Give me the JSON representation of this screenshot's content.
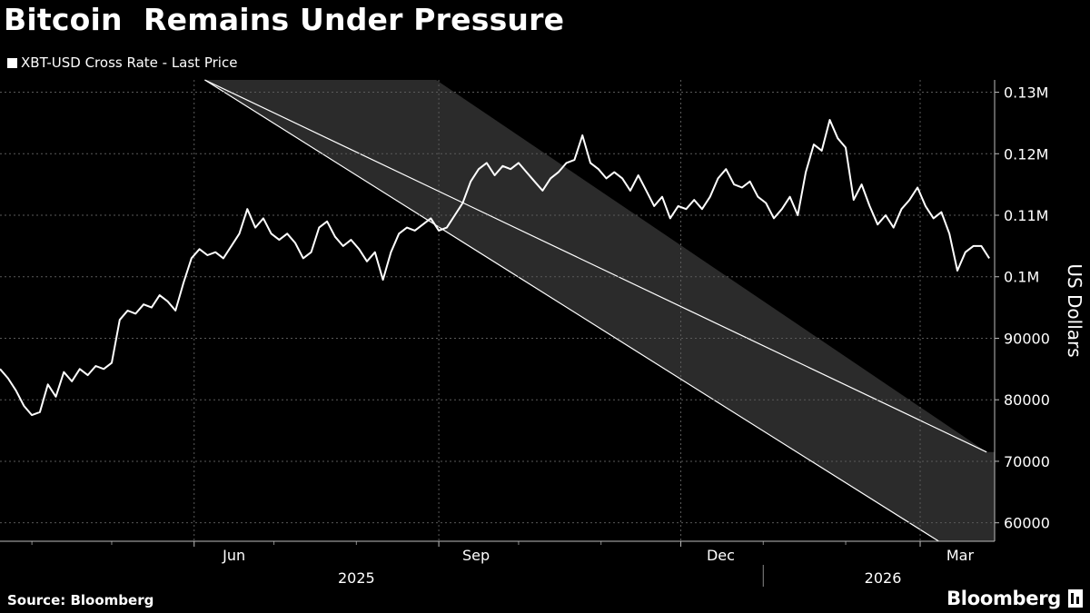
{
  "header": {
    "title": "Bitcoin  Remains Under Pressure"
  },
  "footer": {
    "source": "Source: Bloomberg",
    "brand": "Bloomberg"
  },
  "chart_data": {
    "type": "line",
    "title": "Bitcoin  Remains Under Pressure",
    "ylabel": "US Dollars",
    "ylim": [
      57000,
      132000
    ],
    "xlim": [
      "2025-03-20",
      "2026-03-29"
    ],
    "grid": true,
    "legend_position": "top-left",
    "colors": {
      "background": "#000000",
      "line": "#ffffff",
      "channel_fill": "#2b2b2b",
      "channel_edge": "#ffffff",
      "grid": "#5a5a5a"
    },
    "y_ticks": [
      {
        "value": 60000,
        "label": "60000"
      },
      {
        "value": 70000,
        "label": "70000"
      },
      {
        "value": 80000,
        "label": "80000"
      },
      {
        "value": 90000,
        "label": "90000"
      },
      {
        "value": 100000,
        "label": "0.1M"
      },
      {
        "value": 110000,
        "label": "0.11M"
      },
      {
        "value": 120000,
        "label": "0.12M"
      },
      {
        "value": 130000,
        "label": "0.13M"
      }
    ],
    "x_month_labels": [
      {
        "date": "2025-06-16",
        "label": "Jun"
      },
      {
        "date": "2025-09-15",
        "label": "Sep"
      },
      {
        "date": "2025-12-16",
        "label": "Dec"
      },
      {
        "date": "2026-03-16",
        "label": "Mar"
      }
    ],
    "x_year_labels": [
      {
        "date": "2025-08-01",
        "label": "2025"
      },
      {
        "date": "2026-02-15",
        "label": "2026"
      }
    ],
    "year_divider": "2026-01-01",
    "x_gridlines": [
      "2025-06-01",
      "2025-09-01",
      "2025-12-01",
      "2026-03-01"
    ],
    "x_minor_ticks": [
      "2025-04-01",
      "2025-05-01",
      "2025-07-01",
      "2025-08-01",
      "2025-10-01",
      "2025-11-01",
      "2026-01-01",
      "2026-02-01"
    ],
    "trend_channel": {
      "upper": [
        [
          "2025-06-05",
          132000
        ],
        [
          "2026-03-26",
          71500
        ]
      ],
      "lower": [
        [
          "2025-06-05",
          132000
        ],
        [
          "2026-03-08",
          57000
        ]
      ],
      "top_edge": [
        [
          "2025-06-05",
          132000
        ],
        [
          "2025-08-31",
          132000
        ]
      ]
    },
    "series": [
      {
        "name": "XBT-USD Cross Rate - Last Price",
        "points": [
          [
            "2025-03-20",
            85000
          ],
          [
            "2025-03-23",
            83500
          ],
          [
            "2025-03-26",
            81500
          ],
          [
            "2025-03-29",
            79000
          ],
          [
            "2025-04-01",
            77500
          ],
          [
            "2025-04-04",
            78000
          ],
          [
            "2025-04-07",
            82500
          ],
          [
            "2025-04-10",
            80500
          ],
          [
            "2025-04-13",
            84500
          ],
          [
            "2025-04-16",
            83000
          ],
          [
            "2025-04-19",
            85000
          ],
          [
            "2025-04-22",
            84000
          ],
          [
            "2025-04-25",
            85500
          ],
          [
            "2025-04-28",
            85000
          ],
          [
            "2025-05-01",
            86000
          ],
          [
            "2025-05-04",
            93000
          ],
          [
            "2025-05-07",
            94500
          ],
          [
            "2025-05-10",
            94000
          ],
          [
            "2025-05-13",
            95500
          ],
          [
            "2025-05-16",
            95000
          ],
          [
            "2025-05-19",
            97000
          ],
          [
            "2025-05-22",
            96000
          ],
          [
            "2025-05-25",
            94500
          ],
          [
            "2025-05-28",
            99000
          ],
          [
            "2025-05-31",
            103000
          ],
          [
            "2025-06-03",
            104500
          ],
          [
            "2025-06-06",
            103500
          ],
          [
            "2025-06-09",
            104000
          ],
          [
            "2025-06-12",
            103000
          ],
          [
            "2025-06-15",
            105000
          ],
          [
            "2025-06-18",
            107000
          ],
          [
            "2025-06-21",
            111000
          ],
          [
            "2025-06-24",
            108000
          ],
          [
            "2025-06-27",
            109500
          ],
          [
            "2025-06-30",
            107000
          ],
          [
            "2025-07-03",
            106000
          ],
          [
            "2025-07-06",
            107000
          ],
          [
            "2025-07-09",
            105500
          ],
          [
            "2025-07-12",
            103000
          ],
          [
            "2025-07-15",
            104000
          ],
          [
            "2025-07-18",
            108000
          ],
          [
            "2025-07-21",
            109000
          ],
          [
            "2025-07-24",
            106500
          ],
          [
            "2025-07-27",
            105000
          ],
          [
            "2025-07-30",
            106000
          ],
          [
            "2025-08-02",
            104500
          ],
          [
            "2025-08-05",
            102500
          ],
          [
            "2025-08-08",
            104000
          ],
          [
            "2025-08-11",
            99500
          ],
          [
            "2025-08-14",
            104000
          ],
          [
            "2025-08-17",
            107000
          ],
          [
            "2025-08-20",
            108000
          ],
          [
            "2025-08-23",
            107500
          ],
          [
            "2025-08-26",
            108500
          ],
          [
            "2025-08-29",
            109500
          ],
          [
            "2025-09-01",
            107500
          ],
          [
            "2025-09-04",
            108000
          ],
          [
            "2025-09-07",
            110000
          ],
          [
            "2025-09-10",
            112000
          ],
          [
            "2025-09-13",
            115500
          ],
          [
            "2025-09-16",
            117500
          ],
          [
            "2025-09-19",
            118500
          ],
          [
            "2025-09-22",
            116500
          ],
          [
            "2025-09-25",
            118000
          ],
          [
            "2025-09-28",
            117500
          ],
          [
            "2025-10-01",
            118500
          ],
          [
            "2025-10-04",
            117000
          ],
          [
            "2025-10-07",
            115500
          ],
          [
            "2025-10-10",
            114000
          ],
          [
            "2025-10-13",
            116000
          ],
          [
            "2025-10-16",
            117000
          ],
          [
            "2025-10-19",
            118500
          ],
          [
            "2025-10-22",
            119000
          ],
          [
            "2025-10-25",
            123000
          ],
          [
            "2025-10-28",
            118500
          ],
          [
            "2025-10-31",
            117500
          ],
          [
            "2025-11-03",
            116000
          ],
          [
            "2025-11-06",
            117000
          ],
          [
            "2025-11-09",
            116000
          ],
          [
            "2025-11-12",
            114000
          ],
          [
            "2025-11-15",
            116500
          ],
          [
            "2025-11-18",
            114000
          ],
          [
            "2025-11-21",
            111500
          ],
          [
            "2025-11-24",
            113000
          ],
          [
            "2025-11-27",
            109500
          ],
          [
            "2025-11-30",
            111500
          ],
          [
            "2025-12-03",
            111000
          ],
          [
            "2025-12-06",
            112500
          ],
          [
            "2025-12-09",
            111000
          ],
          [
            "2025-12-12",
            113000
          ],
          [
            "2025-12-15",
            116000
          ],
          [
            "2025-12-18",
            117500
          ],
          [
            "2025-12-21",
            115000
          ],
          [
            "2025-12-24",
            114500
          ],
          [
            "2025-12-27",
            115500
          ],
          [
            "2025-12-30",
            113000
          ],
          [
            "2026-01-02",
            112000
          ],
          [
            "2026-01-05",
            109500
          ],
          [
            "2026-01-08",
            111000
          ],
          [
            "2026-01-11",
            113000
          ],
          [
            "2026-01-14",
            110000
          ],
          [
            "2026-01-17",
            117000
          ],
          [
            "2026-01-20",
            121500
          ],
          [
            "2026-01-23",
            120500
          ],
          [
            "2026-01-26",
            125500
          ],
          [
            "2026-01-29",
            122500
          ],
          [
            "2026-02-01",
            121000
          ],
          [
            "2026-02-04",
            112500
          ],
          [
            "2026-02-07",
            115000
          ],
          [
            "2026-02-10",
            111500
          ],
          [
            "2026-02-13",
            108500
          ],
          [
            "2026-02-16",
            110000
          ],
          [
            "2026-02-19",
            108000
          ],
          [
            "2026-02-22",
            111000
          ],
          [
            "2026-02-25",
            112500
          ],
          [
            "2026-02-28",
            114500
          ],
          [
            "2026-03-03",
            111500
          ],
          [
            "2026-03-06",
            109500
          ],
          [
            "2026-03-09",
            110500
          ],
          [
            "2026-03-12",
            107000
          ],
          [
            "2026-03-15",
            101000
          ],
          [
            "2026-03-18",
            104000
          ],
          [
            "2026-03-21",
            105000
          ],
          [
            "2026-03-24",
            105000
          ],
          [
            "2026-03-27",
            103000
          ]
        ]
      }
    ]
  }
}
